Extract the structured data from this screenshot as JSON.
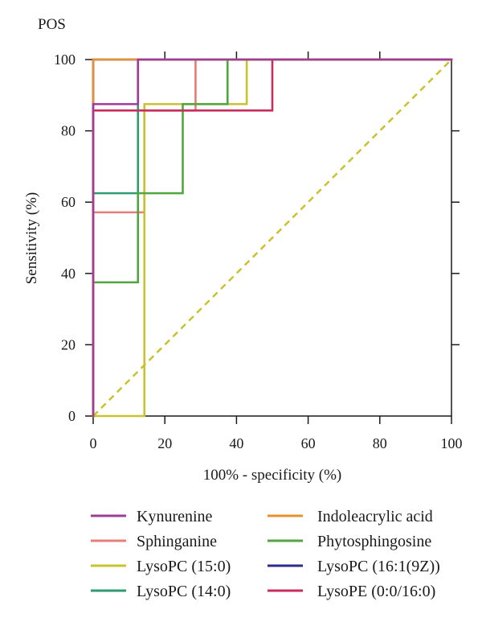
{
  "chart_data": {
    "type": "line",
    "title": "POS",
    "xlabel": "100% - specificity (%)",
    "ylabel": "Sensitivity (%)",
    "xlim": [
      0,
      100
    ],
    "ylim": [
      0,
      100
    ],
    "x_ticks": [
      0,
      20,
      40,
      60,
      80,
      100
    ],
    "y_ticks": [
      0,
      20,
      40,
      60,
      80,
      100
    ],
    "grid": false,
    "legend": {
      "placement": "bottom",
      "columns": 2
    },
    "reference_line": {
      "style": "dashed",
      "color": "#c9c230",
      "points": [
        [
          0,
          0
        ],
        [
          100,
          100
        ]
      ]
    },
    "series": [
      {
        "name": "Kynurenine",
        "color": "#9e3b9b",
        "points": [
          [
            0,
            0
          ],
          [
            0,
            87.5
          ],
          [
            12.5,
            87.5
          ],
          [
            12.5,
            100
          ],
          [
            100,
            100
          ]
        ]
      },
      {
        "name": "Sphinganine",
        "color": "#e57d78",
        "points": [
          [
            0,
            0
          ],
          [
            0,
            57.14
          ],
          [
            14.29,
            57.14
          ],
          [
            14.29,
            85.71
          ],
          [
            28.57,
            85.71
          ],
          [
            28.57,
            100
          ],
          [
            100,
            100
          ]
        ]
      },
      {
        "name": "LysoPC (15:0)",
        "color": "#c9c230",
        "points": [
          [
            0,
            0
          ],
          [
            14.29,
            0
          ],
          [
            14.29,
            87.5
          ],
          [
            42.86,
            87.5
          ],
          [
            42.86,
            100
          ],
          [
            100,
            100
          ]
        ]
      },
      {
        "name": "LysoPC (14:0)",
        "color": "#2e9b70",
        "points": [
          [
            0,
            0
          ],
          [
            0,
            62.5
          ],
          [
            12.5,
            62.5
          ],
          [
            12.5,
            100
          ],
          [
            100,
            100
          ]
        ]
      },
      {
        "name": "Indoleacrylic acid",
        "color": "#e8902c",
        "points": [
          [
            0,
            0
          ],
          [
            0,
            100
          ],
          [
            100,
            100
          ]
        ]
      },
      {
        "name": "Phytosphingosine",
        "color": "#4fa63f",
        "points": [
          [
            0,
            0
          ],
          [
            0,
            37.5
          ],
          [
            12.5,
            37.5
          ],
          [
            12.5,
            62.5
          ],
          [
            25,
            62.5
          ],
          [
            25,
            87.5
          ],
          [
            37.5,
            87.5
          ],
          [
            37.5,
            100
          ],
          [
            100,
            100
          ]
        ]
      },
      {
        "name": "LysoPC (16:1(9Z))",
        "color": "#2e2a8c",
        "points": [
          [
            0,
            0
          ],
          [
            0,
            100
          ],
          [
            100,
            100
          ]
        ]
      },
      {
        "name": "LysoPE (0:0/16:0)",
        "color": "#c82d5c",
        "points": [
          [
            0,
            0
          ],
          [
            0,
            85.71
          ],
          [
            50,
            85.71
          ],
          [
            50,
            100
          ],
          [
            100,
            100
          ]
        ]
      }
    ]
  }
}
